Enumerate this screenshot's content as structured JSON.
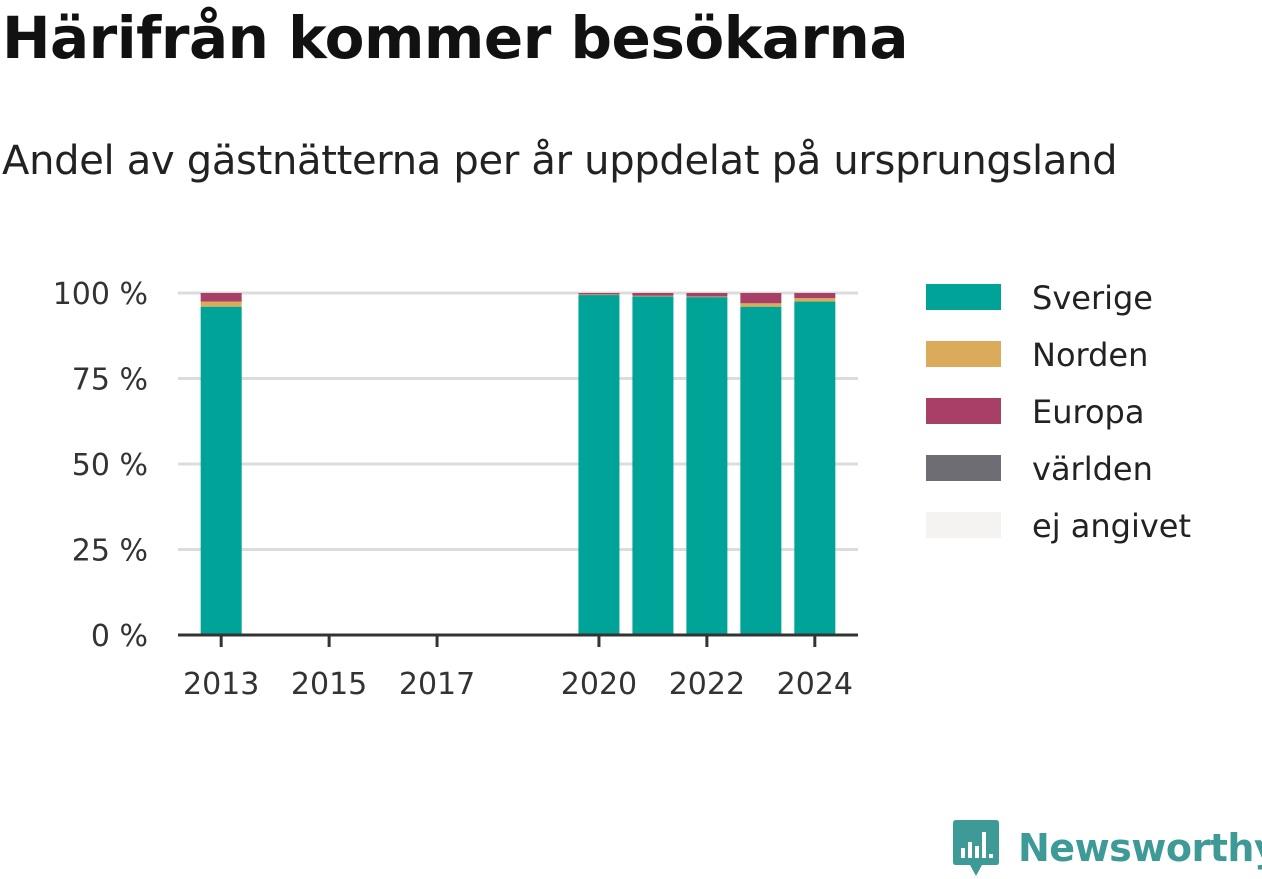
{
  "header": {
    "title": "Härifrån kommer besökarna",
    "subtitle": "Andel av gästnätterna per år uppdelat på ursprungsland"
  },
  "brand": {
    "name": "Newsworthy",
    "color": "#3e9a96"
  },
  "chart_data": {
    "type": "bar",
    "stacked": true,
    "title": "Härifrån kommer besökarna",
    "subtitle": "Andel av gästnätterna per år uppdelat på ursprungsland",
    "xlabel": "",
    "ylabel": "",
    "x_tick_labels": [
      "2013",
      "2015",
      "2017",
      "2020",
      "2022",
      "2024"
    ],
    "y_tick_labels": [
      "0 %",
      "25 %",
      "50 %",
      "75 %",
      "100 %"
    ],
    "y_ticks": [
      0,
      25,
      50,
      75,
      100
    ],
    "ylim": [
      0,
      100
    ],
    "xlim": [
      2012.2,
      2024.8
    ],
    "grid": true,
    "legend_position": "right",
    "x": [
      2013,
      2020,
      2021,
      2022,
      2023,
      2024
    ],
    "series": [
      {
        "name": "Sverige",
        "color": "#00a398",
        "values": [
          96.0,
          99.4,
          99.0,
          98.8,
          96.0,
          97.5
        ]
      },
      {
        "name": "Norden",
        "color": "#d9ab5a",
        "values": [
          1.5,
          0.2,
          0.2,
          0.2,
          1.0,
          1.0
        ]
      },
      {
        "name": "Europa",
        "color": "#a83f66",
        "values": [
          2.5,
          0.4,
          0.8,
          1.0,
          3.0,
          1.5
        ]
      },
      {
        "name": "världen",
        "color": "#6d6d73",
        "values": [
          0.0,
          0.0,
          0.0,
          0.0,
          0.0,
          0.0
        ]
      },
      {
        "name": "ej angivet",
        "color": "#f4f3f1",
        "values": [
          0.0,
          0.0,
          0.0,
          0.0,
          0.0,
          0.0
        ]
      }
    ]
  }
}
